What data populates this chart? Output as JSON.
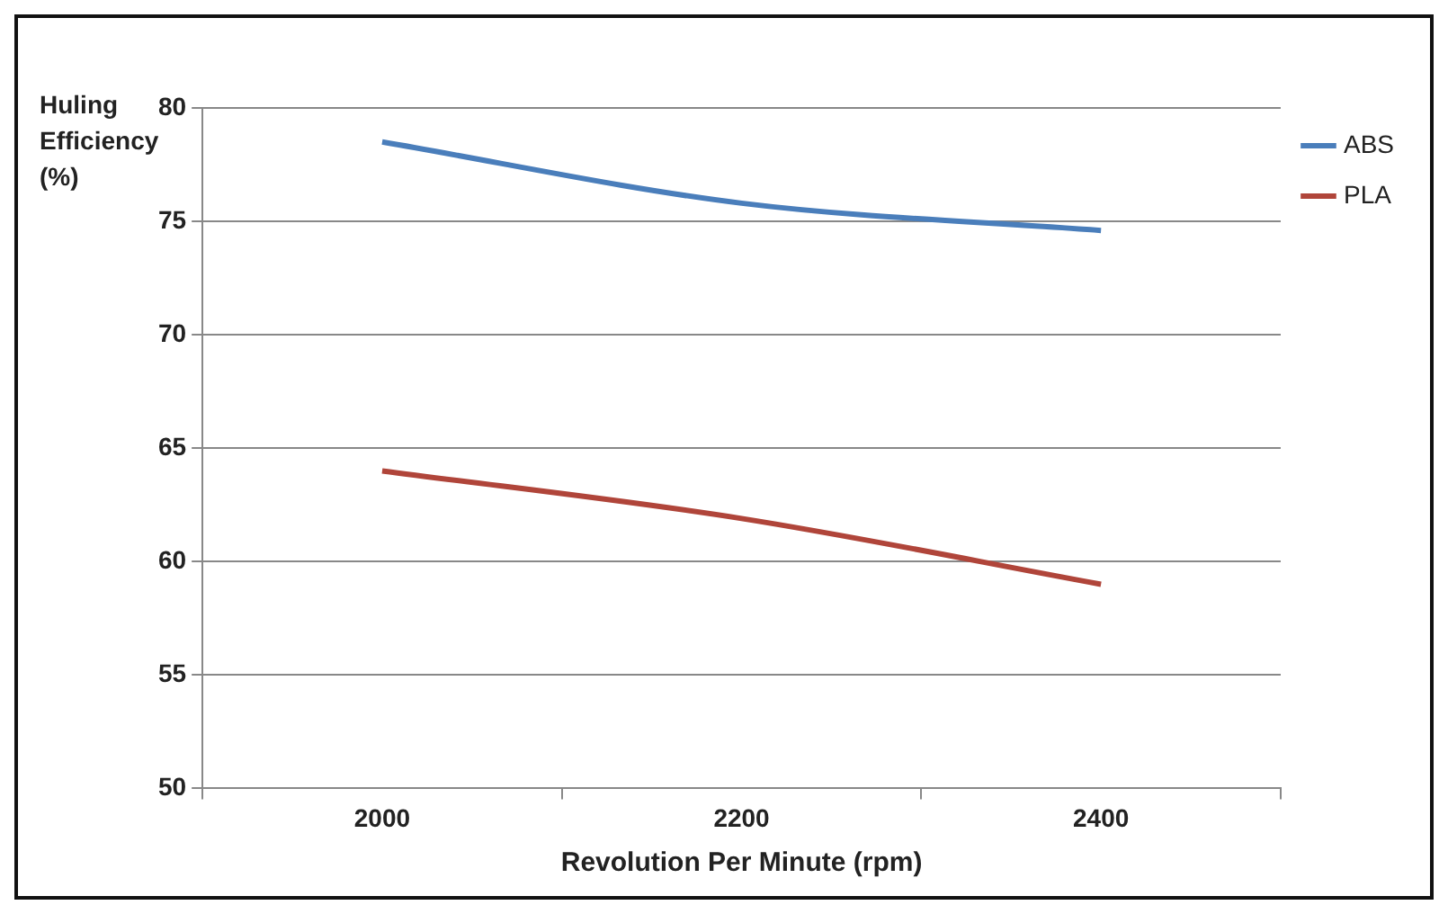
{
  "chart_data": {
    "type": "line",
    "xlabel": "Revolution Per Minute (rpm)",
    "ylabel": "Huling Efficiency (%)",
    "categories": [
      "2000",
      "2200",
      "2400"
    ],
    "series": [
      {
        "name": "ABS",
        "color": "#4a7ebb",
        "values": [
          78.5,
          75.8,
          74.6
        ]
      },
      {
        "name": "PLA",
        "color": "#b0453a",
        "values": [
          64,
          61.9,
          59
        ]
      }
    ],
    "ylim": [
      50,
      80
    ],
    "yticks": [
      50,
      55,
      60,
      65,
      70,
      75,
      80
    ],
    "grid": "y",
    "legend": "top right",
    "marker": "none",
    "line_style": "solid"
  }
}
